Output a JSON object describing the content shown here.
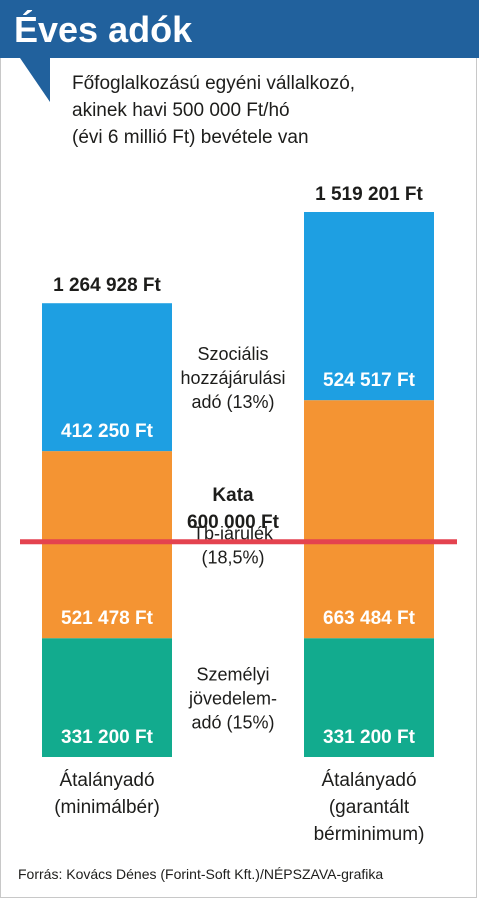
{
  "header": {
    "title": "Éves adók",
    "subtitle_lines": [
      "Főfoglalkozású egyéni vállalkozó,",
      "akinek havi 500 000 Ft/hó",
      "(évi 6 millió Ft) bevétele van"
    ]
  },
  "colors": {
    "title_bg": "#21619d",
    "szocho": "#1e9fe2",
    "tb": "#f49433",
    "szja": "#12ab8e",
    "kata_line": "#e4434f"
  },
  "chart_data": {
    "type": "bar",
    "stacked": true,
    "categories": [
      [
        "Átalányadó",
        "(minimálbér)"
      ],
      [
        "Átalányadó",
        "(garantált",
        "bérminimum)"
      ]
    ],
    "totals": [
      1264928,
      1519201
    ],
    "total_labels": [
      "1 264 928 Ft",
      "1 519 201 Ft"
    ],
    "series": [
      {
        "key": "szja",
        "name_lines": [
          "Személyi",
          "jövedelem-",
          "adó (15%)"
        ],
        "values": [
          331200,
          331200
        ],
        "labels": [
          "331 200 Ft",
          "331 200 Ft"
        ]
      },
      {
        "key": "tb",
        "name_lines": [
          "Tb-járulék",
          "(18,5%)"
        ],
        "values": [
          521478,
          663484
        ],
        "labels": [
          "521 478 Ft",
          "663 484 Ft"
        ]
      },
      {
        "key": "szocho",
        "name_lines": [
          "Szociális",
          "hozzájárulási",
          "adó (13%)"
        ],
        "values": [
          412250,
          524517
        ],
        "labels": [
          "412 250 Ft",
          "524 517 Ft"
        ]
      }
    ],
    "reference_line": {
      "value": 600000,
      "label_lines": [
        "Kata",
        "600 000 Ft"
      ]
    }
  },
  "footer": {
    "source": "Forrás: Kovács Dénes (Forint-Soft Kft.)/NÉPSZAVA-grafika"
  }
}
